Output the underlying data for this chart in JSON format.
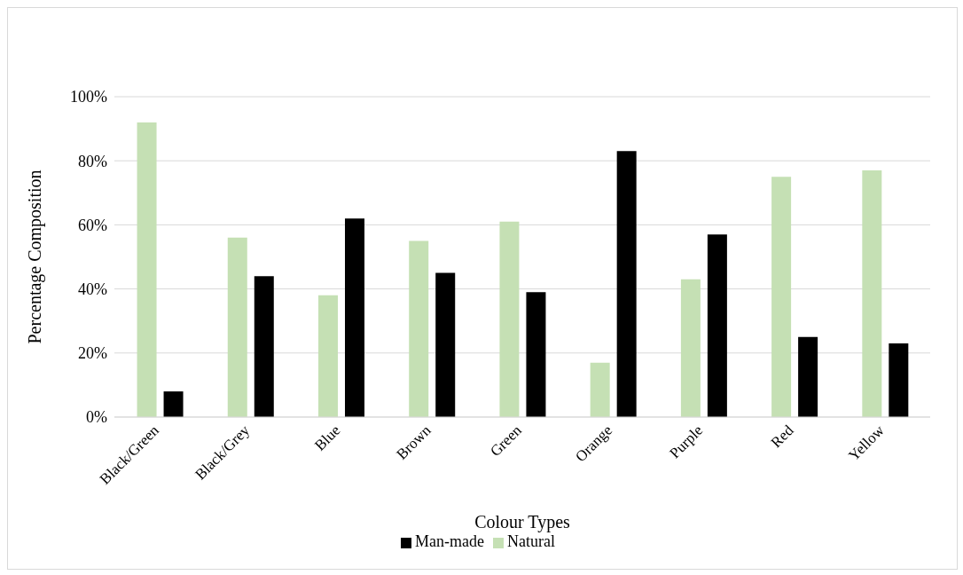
{
  "chart_data": {
    "type": "bar",
    "xlabel": "Colour Types",
    "ylabel": "Percentage Composition",
    "categories": [
      "Black/Green",
      "Black/Grey",
      "Blue",
      "Brown",
      "Green",
      "Orange",
      "Purple",
      "Red",
      "Yellow"
    ],
    "series": [
      {
        "name": "Natural",
        "color": "#c5e0b4",
        "values": [
          92,
          56,
          38,
          55,
          61,
          17,
          43,
          75,
          77
        ]
      },
      {
        "name": "Man-made",
        "color": "#000000",
        "values": [
          8,
          44,
          62,
          45,
          39,
          83,
          57,
          25,
          23
        ]
      }
    ],
    "ylim": [
      0,
      100
    ],
    "yticks": [
      {
        "value": 0,
        "label": "0%"
      },
      {
        "value": 20,
        "label": "20%"
      },
      {
        "value": 40,
        "label": "40%"
      },
      {
        "value": 60,
        "label": "60%"
      },
      {
        "value": 80,
        "label": "80%"
      },
      {
        "value": 100,
        "label": "100%"
      }
    ],
    "grid": "y",
    "legend": "bottom"
  }
}
